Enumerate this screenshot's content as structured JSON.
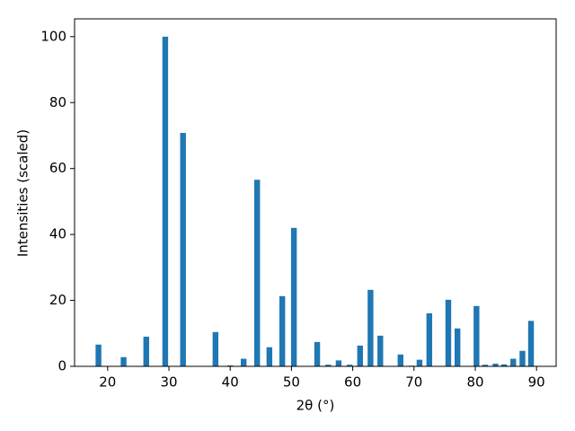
{
  "chart_data": {
    "type": "bar",
    "xlabel": "2θ (°)",
    "ylabel": "Intensities (scaled)",
    "color": "#1f77b4",
    "x": [
      18.5,
      22.6,
      26.3,
      29.4,
      32.3,
      37.6,
      40.0,
      42.2,
      44.4,
      46.4,
      48.5,
      50.4,
      54.2,
      56.0,
      57.7,
      59.5,
      61.2,
      62.9,
      64.5,
      67.8,
      69.6,
      70.9,
      72.5,
      75.6,
      77.1,
      80.2,
      81.6,
      83.3,
      84.7,
      86.2,
      87.7,
      89.1
    ],
    "values": [
      6.6,
      2.8,
      9.0,
      100,
      70.8,
      10.4,
      0.3,
      2.3,
      56.6,
      5.8,
      21.3,
      42,
      7.4,
      0.5,
      1.8,
      0.5,
      6.3,
      23.2,
      9.3,
      3.6,
      0.2,
      2.0,
      16.1,
      20.2,
      11.5,
      18.3,
      0.5,
      0.8,
      0.6,
      2.3,
      4.7,
      13.8
    ],
    "xlim": [
      14.6,
      93.2
    ],
    "xticks": [
      20,
      30,
      40,
      50,
      60,
      70,
      80,
      90
    ],
    "ylim": [
      0,
      105.4
    ],
    "yticks": [
      0,
      20,
      40,
      60,
      80,
      100
    ],
    "grid": false
  }
}
